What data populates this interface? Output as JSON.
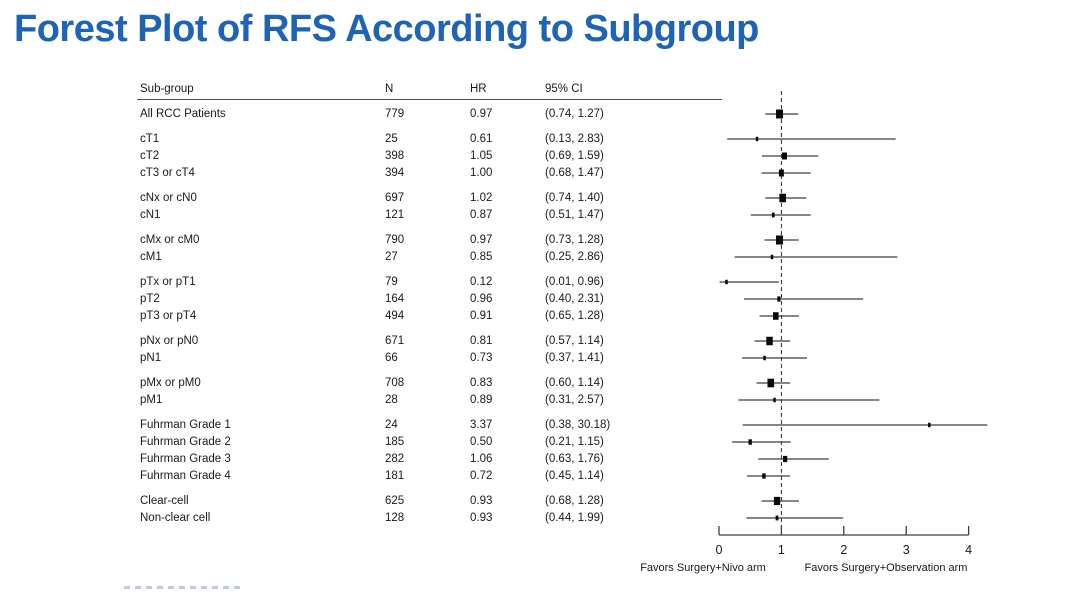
{
  "title": "Forest Plot of RFS According to Subgroup",
  "title_color": "#1e63b4",
  "chart_data": {
    "type": "forest",
    "title": "Forest Plot of RFS According to Subgroup",
    "columns": [
      "Sub-group",
      "N",
      "HR",
      "95% CI"
    ],
    "axis": {
      "min": 0,
      "max": 4,
      "ticks": [
        "0",
        "1",
        "2",
        "3",
        "4"
      ],
      "reference_line": 1,
      "clip_max": 4.3,
      "left_label": "Favors Surgery+Nivo arm",
      "right_label": "Favors Surgery+Observation arm"
    },
    "groups": [
      {
        "rows": [
          {
            "label": "All RCC Patients",
            "n": "779",
            "hr": "0.97",
            "ci": "(0.74, 1.27)",
            "hr_v": 0.97,
            "lo": 0.74,
            "hi": 1.27
          }
        ]
      },
      {
        "rows": [
          {
            "label": "cT1",
            "n": "25",
            "hr": "0.61",
            "ci": "(0.13, 2.83)",
            "hr_v": 0.61,
            "lo": 0.13,
            "hi": 2.83
          },
          {
            "label": "cT2",
            "n": "398",
            "hr": "1.05",
            "ci": "(0.69, 1.59)",
            "hr_v": 1.05,
            "lo": 0.69,
            "hi": 1.59
          },
          {
            "label": "cT3 or cT4",
            "n": "394",
            "hr": "1.00",
            "ci": "(0.68, 1.47)",
            "hr_v": 1.0,
            "lo": 0.68,
            "hi": 1.47
          }
        ]
      },
      {
        "rows": [
          {
            "label": "cNx or cN0",
            "n": "697",
            "hr": "1.02",
            "ci": "(0.74, 1.40)",
            "hr_v": 1.02,
            "lo": 0.74,
            "hi": 1.4
          },
          {
            "label": "cN1",
            "n": "121",
            "hr": "0.87",
            "ci": "(0.51, 1.47)",
            "hr_v": 0.87,
            "lo": 0.51,
            "hi": 1.47
          }
        ]
      },
      {
        "rows": [
          {
            "label": "cMx or cM0",
            "n": "790",
            "hr": "0.97",
            "ci": "(0.73, 1.28)",
            "hr_v": 0.97,
            "lo": 0.73,
            "hi": 1.28
          },
          {
            "label": "cM1",
            "n": "27",
            "hr": "0.85",
            "ci": "(0.25, 2.86)",
            "hr_v": 0.85,
            "lo": 0.25,
            "hi": 2.86
          }
        ]
      },
      {
        "rows": [
          {
            "label": "pTx or pT1",
            "n": "79",
            "hr": "0.12",
            "ci": "(0.01, 0.96)",
            "hr_v": 0.12,
            "lo": 0.01,
            "hi": 0.96
          },
          {
            "label": "pT2",
            "n": "164",
            "hr": "0.96",
            "ci": "(0.40, 2.31)",
            "hr_v": 0.96,
            "lo": 0.4,
            "hi": 2.31
          },
          {
            "label": "pT3 or pT4",
            "n": "494",
            "hr": "0.91",
            "ci": "(0.65, 1.28)",
            "hr_v": 0.91,
            "lo": 0.65,
            "hi": 1.28
          }
        ]
      },
      {
        "rows": [
          {
            "label": "pNx or pN0",
            "n": "671",
            "hr": "0.81",
            "ci": "(0.57, 1.14)",
            "hr_v": 0.81,
            "lo": 0.57,
            "hi": 1.14
          },
          {
            "label": "pN1",
            "n": "66",
            "hr": "0.73",
            "ci": "(0.37, 1.41)",
            "hr_v": 0.73,
            "lo": 0.37,
            "hi": 1.41
          }
        ]
      },
      {
        "rows": [
          {
            "label": "pMx or pM0",
            "n": "708",
            "hr": "0.83",
            "ci": "(0.60, 1.14)",
            "hr_v": 0.83,
            "lo": 0.6,
            "hi": 1.14
          },
          {
            "label": "pM1",
            "n": "28",
            "hr": "0.89",
            "ci": "(0.31, 2.57)",
            "hr_v": 0.89,
            "lo": 0.31,
            "hi": 2.57
          }
        ]
      },
      {
        "rows": [
          {
            "label": "Fuhrman Grade 1",
            "n": "24",
            "hr": "3.37",
            "ci": "(0.38, 30.18)",
            "hr_v": 3.37,
            "lo": 0.38,
            "hi": 30.18
          },
          {
            "label": "Fuhrman Grade 2",
            "n": "185",
            "hr": "0.50",
            "ci": "(0.21, 1.15)",
            "hr_v": 0.5,
            "lo": 0.21,
            "hi": 1.15
          },
          {
            "label": "Fuhrman Grade 3",
            "n": "282",
            "hr": "1.06",
            "ci": "(0.63, 1.76)",
            "hr_v": 1.06,
            "lo": 0.63,
            "hi": 1.76
          },
          {
            "label": "Fuhrman Grade 4",
            "n": "181",
            "hr": "0.72",
            "ci": "(0.45, 1.14)",
            "hr_v": 0.72,
            "lo": 0.45,
            "hi": 1.14
          }
        ]
      },
      {
        "rows": [
          {
            "label": "Clear-cell",
            "n": "625",
            "hr": "0.93",
            "ci": "(0.68, 1.28)",
            "hr_v": 0.93,
            "lo": 0.68,
            "hi": 1.28
          },
          {
            "label": "Non-clear cell",
            "n": "128",
            "hr": "0.93",
            "ci": "(0.44, 1.99)",
            "hr_v": 0.93,
            "lo": 0.44,
            "hi": 1.99
          }
        ]
      }
    ]
  }
}
